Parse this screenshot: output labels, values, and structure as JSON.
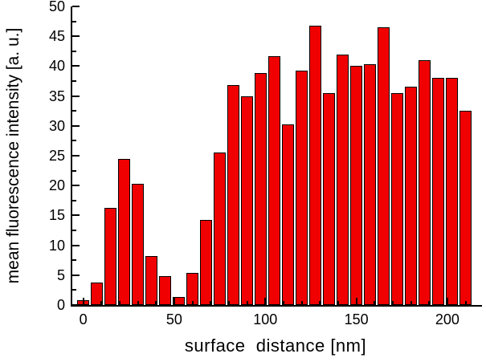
{
  "chart_data": {
    "type": "bar",
    "title": "",
    "xlabel": "surface  distance [nm]",
    "ylabel": "mean fluorescence intensity [a. u.]",
    "x": [
      0,
      7.5,
      15,
      22.5,
      30,
      37.5,
      45,
      52.5,
      60,
      67.5,
      75,
      82.5,
      90,
      97.5,
      105,
      112.5,
      120,
      127.5,
      135,
      142.5,
      150,
      157.5,
      165,
      172.5,
      180,
      187.5,
      195,
      202.5,
      210
    ],
    "values": [
      0.8,
      3.8,
      16.2,
      24.5,
      20.3,
      8.2,
      4.8,
      1.4,
      5.4,
      14.3,
      25.5,
      36.8,
      35.0,
      38.8,
      41.7,
      30.3,
      39.2,
      46.8,
      35.5,
      42.0,
      40.0,
      40.3,
      46.5,
      35.5,
      36.5,
      41.0,
      38.0,
      38.0,
      32.5
    ],
    "bar_width_nm": 6.4,
    "xlim": [
      -6,
      219
    ],
    "ylim": [
      0,
      50
    ],
    "x_ticks": [
      0,
      50,
      100,
      150,
      200
    ],
    "x_minor_step": 10,
    "y_ticks": [
      0,
      5,
      10,
      15,
      20,
      25,
      30,
      35,
      40,
      45,
      50
    ],
    "y_minor_step": 2.5,
    "grid": false,
    "legend": false,
    "bar_color": "#f00000",
    "bar_border_color": "#000000",
    "axis_color": "#000000"
  }
}
